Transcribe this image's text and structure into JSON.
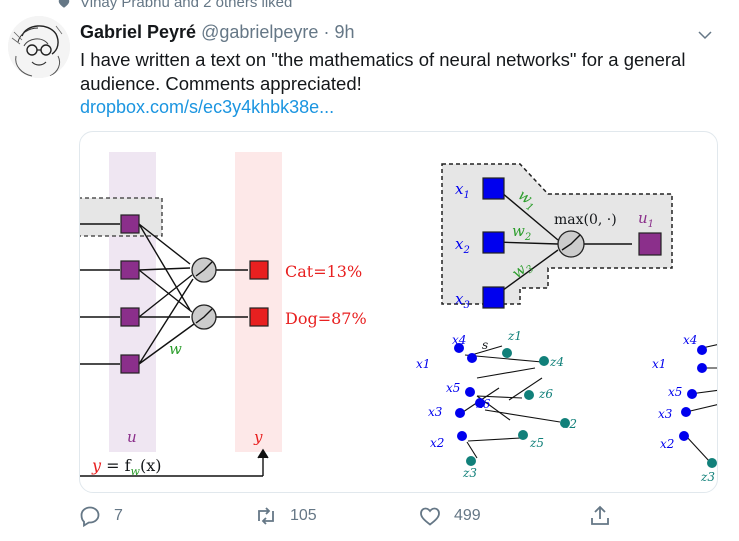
{
  "social_context": {
    "text": "Vinay Prabhu and 2 others liked"
  },
  "tweet": {
    "author_name": "Gabriel Peyré",
    "handle": "@gabrielpeyre",
    "separator": "·",
    "time": "9h",
    "text": "I have written a text on \"the mathematics of neural networks\" for a general audience. Comments appreciated!",
    "link": "dropbox.com/s/ec3y4khbk38e..."
  },
  "figure": {
    "outputs": {
      "cat": "Cat=13%",
      "dog": "Dog=87%"
    },
    "labels": {
      "w": "w",
      "u": "u",
      "y": "y",
      "formula_y": "y",
      "formula_eq": " = f",
      "formula_w": "w",
      "formula_x": "(x)"
    },
    "neuron": {
      "x1": "x",
      "x1_sub": "1",
      "x2": "x",
      "x2_sub": "2",
      "x3": "x",
      "x3_sub": "3",
      "w1": "w",
      "w1_sub": "1",
      "w2": "w",
      "w2_sub": "2",
      "w3": "w",
      "w3_sub": "3",
      "activation": "max(0, ·)",
      "u1": "u",
      "u1_sub": "1"
    },
    "graph": {
      "x_nodes": [
        "x4",
        "x1",
        "x5",
        "x3",
        "x6",
        "x2"
      ],
      "z_nodes": [
        "z1",
        "z4",
        "z6",
        "z2",
        "z5",
        "z3"
      ],
      "s": "s"
    }
  },
  "actions": {
    "reply_count": "7",
    "retweet_count": "105",
    "like_count": "499"
  },
  "colors": {
    "blue": "#0000ee",
    "purple": "#8b2f8b",
    "red": "#e82020",
    "teal": "#11807a",
    "link": "#1b95e0",
    "muted": "#657786"
  }
}
